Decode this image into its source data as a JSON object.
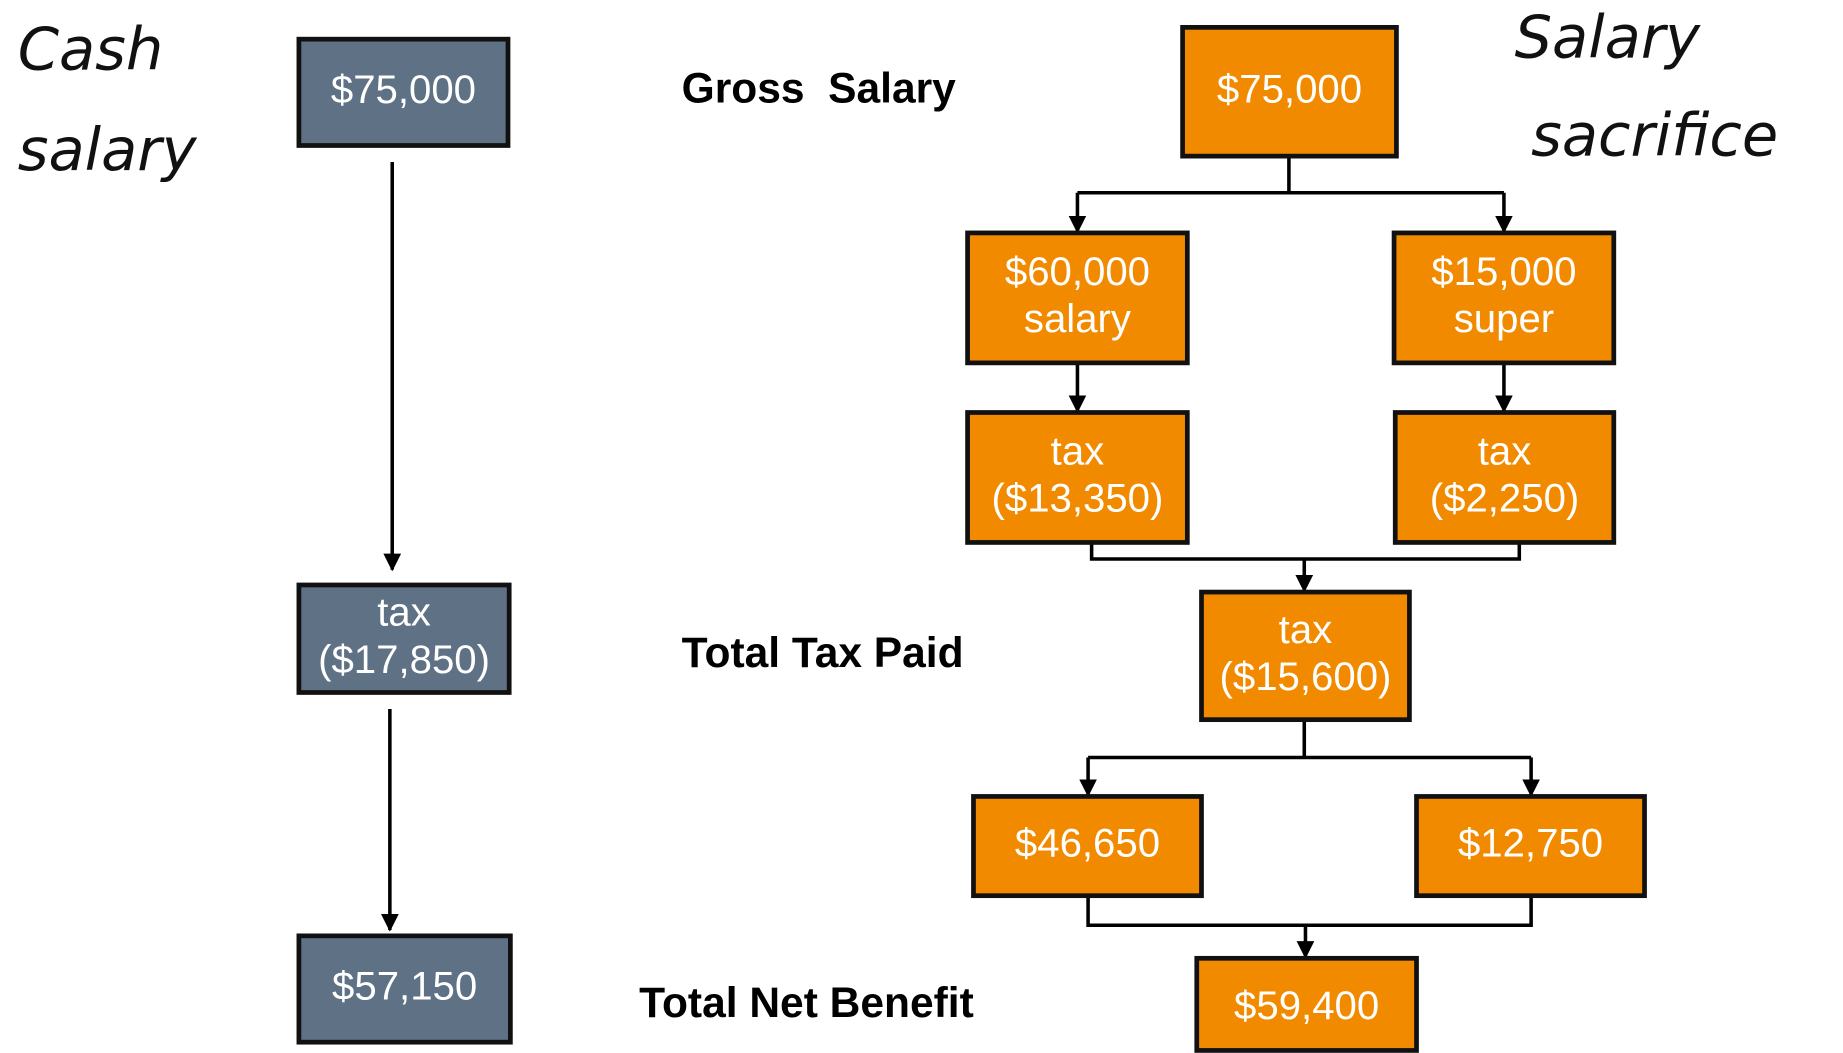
{
  "left_title": [
    "Cash",
    "salary"
  ],
  "right_title": [
    "Salary",
    "sacrifice"
  ],
  "row_labels": {
    "gross": "Gross  Salary",
    "tax": "Total Tax Paid",
    "net": "Total Net Benefit"
  },
  "cash_nodes": [
    {
      "lines": [
        "$75,000"
      ]
    },
    {
      "lines": [
        "tax",
        "($17,850)"
      ]
    },
    {
      "lines": [
        "$57,150"
      ]
    }
  ],
  "sacrifice_nodes": [
    {
      "lines": [
        "$75,000"
      ]
    },
    {
      "lines": [
        "$60,000",
        "salary"
      ]
    },
    {
      "lines": [
        "$15,000",
        "super"
      ]
    },
    {
      "lines": [
        "tax",
        "($13,350)"
      ]
    },
    {
      "lines": [
        "tax",
        "($2,250)"
      ]
    },
    {
      "lines": [
        "tax",
        "($15,600)"
      ]
    },
    {
      "lines": [
        "$46,650"
      ]
    },
    {
      "lines": [
        "$12,750"
      ]
    },
    {
      "lines": [
        "$59,400"
      ]
    }
  ]
}
